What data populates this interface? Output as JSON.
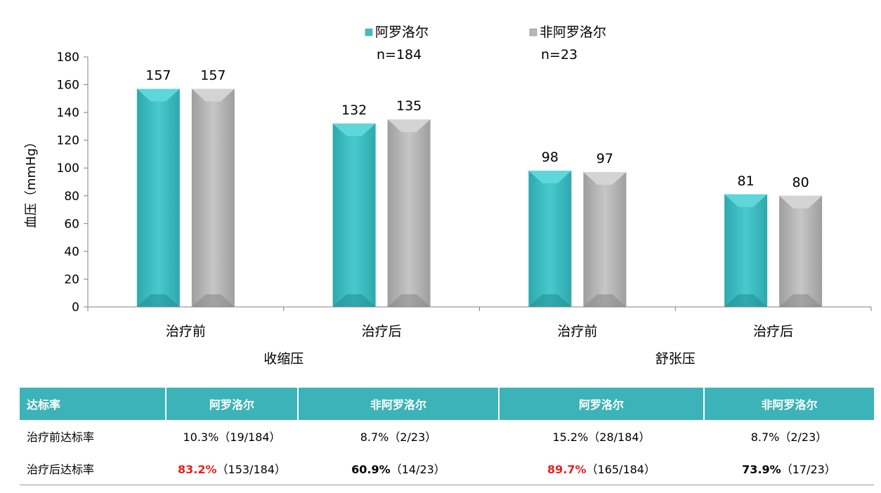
{
  "chart_data": {
    "type": "bar",
    "ylabel": "血压（mmHg）",
    "ylim": [
      0,
      180
    ],
    "yticks": [
      0,
      20,
      40,
      60,
      80,
      100,
      120,
      140,
      160,
      180
    ],
    "categories": [
      "治疗前",
      "治疗后",
      "治疗前",
      "治疗后"
    ],
    "groups": [
      {
        "label": "收缩压",
        "categories": [
          0,
          1
        ]
      },
      {
        "label": "舒张压",
        "categories": [
          2,
          3
        ]
      }
    ],
    "series": [
      {
        "name": "阿罗洛尔",
        "sub": "n=184",
        "color": "#3cbfc4",
        "values": [
          157,
          132,
          98,
          81
        ]
      },
      {
        "name": "非阿罗洛尔",
        "sub": "n=23",
        "color": "#b8b8b8",
        "values": [
          157,
          135,
          97,
          80
        ]
      }
    ],
    "legend": "top-right",
    "grid": false
  },
  "table": {
    "headers": [
      "达标率",
      "阿罗洛尔",
      "非阿罗洛尔",
      "阿罗洛尔",
      "非阿罗洛尔"
    ],
    "rows": [
      {
        "label": "治疗前达标率",
        "cells": [
          {
            "pct": "",
            "rest": "10.3%（19/184）"
          },
          {
            "pct": "",
            "rest": "8.7%（2/23）"
          },
          {
            "pct": "",
            "rest": "15.2%（28/184）"
          },
          {
            "pct": "",
            "rest": "8.7%（2/23）"
          }
        ]
      },
      {
        "label": "治疗后达标率",
        "cells": [
          {
            "pct": "83.2%",
            "rest": "（153/184）",
            "color": "#e8201c"
          },
          {
            "pct": "60.9%",
            "rest": "（14/23）",
            "color": "#000000"
          },
          {
            "pct": "89.7%",
            "rest": "（165/184）",
            "color": "#e8201c"
          },
          {
            "pct": "73.9%",
            "rest": "（17/23）",
            "color": "#000000"
          }
        ]
      }
    ]
  }
}
